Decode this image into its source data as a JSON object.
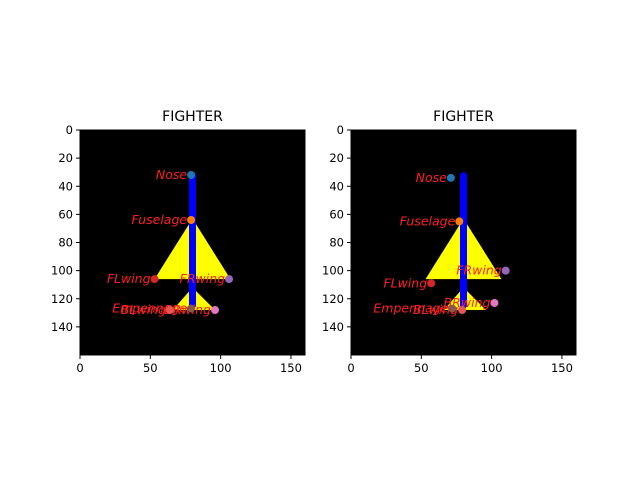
{
  "chart_data": [
    {
      "type": "scatter",
      "title": "FIGHTER",
      "background_color": "#000000",
      "xlim": [
        0,
        160
      ],
      "ylim": [
        160,
        0
      ],
      "xticks": [
        "0",
        "50",
        "100",
        "150"
      ],
      "yticks": [
        "0",
        "20",
        "40",
        "60",
        "80",
        "100",
        "120",
        "140"
      ],
      "label_color": "#ff2020",
      "silhouette": {
        "body_color": "#0000ff",
        "wing_color": "#ffff00",
        "fuselage": {
          "x": 80,
          "y_top": 30,
          "y_bottom": 127
        },
        "main_wing": [
          [
            80,
            63
          ],
          [
            53,
            106
          ],
          [
            107,
            106
          ]
        ],
        "tail_wing": [
          [
            80,
            112
          ],
          [
            66,
            128
          ],
          [
            96,
            128
          ]
        ]
      },
      "points": [
        {
          "name": "Nose",
          "x": 79,
          "y": 32,
          "color": "#1f77b4"
        },
        {
          "name": "Fuselage",
          "x": 79,
          "y": 64,
          "color": "#ff7f0e"
        },
        {
          "name": "FLwing",
          "x": 53,
          "y": 106,
          "color": "#d62728"
        },
        {
          "name": "FRwing",
          "x": 106,
          "y": 106,
          "color": "#9467bd"
        },
        {
          "name": "Empennage",
          "x": 79,
          "y": 127,
          "color": "#8c564b"
        },
        {
          "name": "BLwing",
          "x": 64,
          "y": 128,
          "color": "#e45756"
        },
        {
          "name": "BRwing",
          "x": 96,
          "y": 128,
          "color": "#e377c2"
        }
      ]
    },
    {
      "type": "scatter",
      "title": "FIGHTER",
      "background_color": "#000000",
      "xlim": [
        0,
        160
      ],
      "ylim": [
        160,
        0
      ],
      "xticks": [
        "0",
        "50",
        "100",
        "150"
      ],
      "yticks": [
        "0",
        "20",
        "40",
        "60",
        "80",
        "100",
        "120",
        "140"
      ],
      "label_color": "#ff2020",
      "silhouette": {
        "body_color": "#0000ff",
        "wing_color": "#ffff00",
        "fuselage": {
          "x": 80,
          "y_top": 30,
          "y_bottom": 127
        },
        "main_wing": [
          [
            80,
            63
          ],
          [
            53,
            106
          ],
          [
            107,
            106
          ]
        ],
        "tail_wing": [
          [
            80,
            112
          ],
          [
            66,
            128
          ],
          [
            96,
            128
          ]
        ]
      },
      "points": [
        {
          "name": "Nose",
          "x": 71,
          "y": 34,
          "color": "#1f77b4"
        },
        {
          "name": "Fuselage",
          "x": 77,
          "y": 65,
          "color": "#ff7f0e"
        },
        {
          "name": "FLwing",
          "x": 57,
          "y": 109,
          "color": "#d62728"
        },
        {
          "name": "FRwing",
          "x": 110,
          "y": 100,
          "color": "#9467bd"
        },
        {
          "name": "Empennage",
          "x": 72,
          "y": 127,
          "color": "#8c564b"
        },
        {
          "name": "BLwing",
          "x": 79,
          "y": 128,
          "color": "#e45756"
        },
        {
          "name": "BRwing",
          "x": 102,
          "y": 123,
          "color": "#e377c2"
        }
      ]
    }
  ]
}
